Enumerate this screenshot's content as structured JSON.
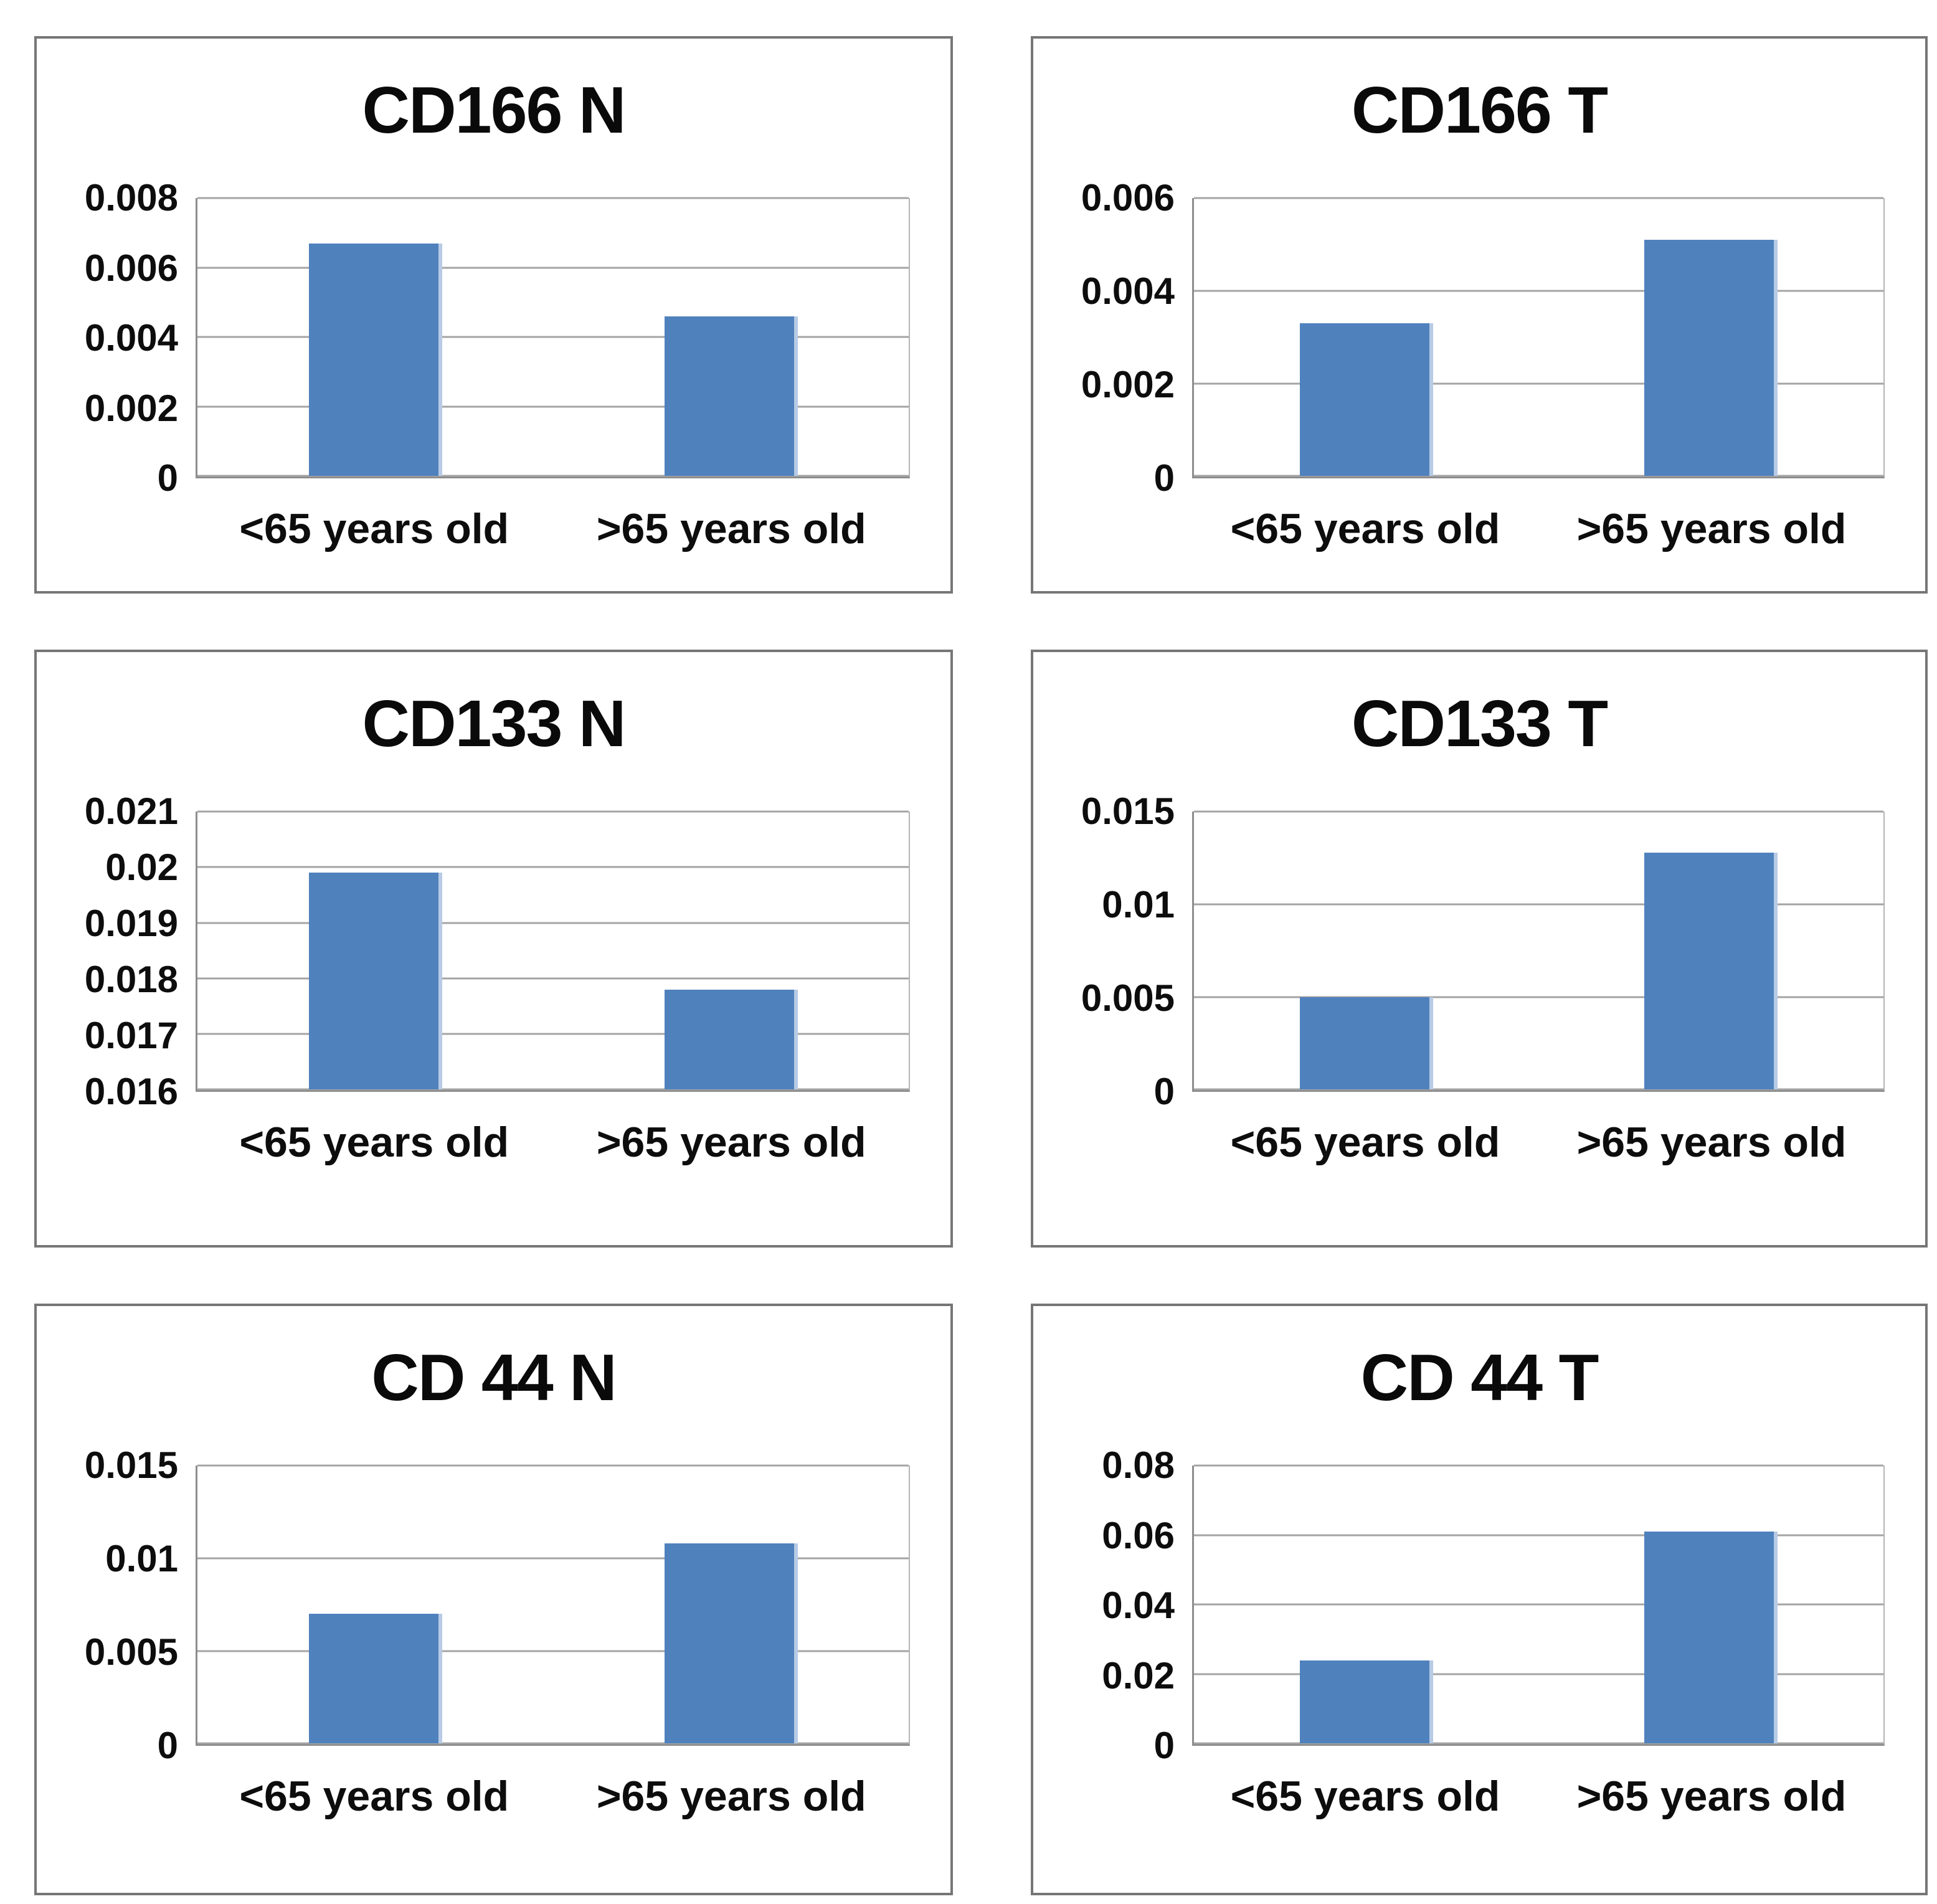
{
  "figure": {
    "description_colors": {
      "bar_fill": "#4F81BD",
      "bar_edge_highlight": "#b7cbe5",
      "gridline": "#a4a4a4",
      "panel_border": "#767676",
      "text": "#0d0d0d",
      "background": "#ffffff"
    }
  },
  "chart_data": [
    {
      "type": "bar",
      "title": "CD166 N",
      "categories": [
        "<65 years old",
        ">65 years old"
      ],
      "values": [
        0.0067,
        0.0046
      ],
      "ylim": [
        0,
        0.008
      ],
      "yticks": [
        0.008,
        0.006,
        0.004,
        0.002,
        0
      ],
      "ytick_labels": [
        "0.008",
        "0.006",
        "0.004",
        "0.002",
        "0"
      ],
      "grid": true,
      "legend": false,
      "xlabel": "",
      "ylabel": ""
    },
    {
      "type": "bar",
      "title": "CD166 T",
      "categories": [
        "<65 years old",
        ">65 years old"
      ],
      "values": [
        0.0033,
        0.0051
      ],
      "ylim": [
        0,
        0.006
      ],
      "yticks": [
        0.006,
        0.004,
        0.002,
        0
      ],
      "ytick_labels": [
        "0.006",
        "0.004",
        "0.002",
        "0"
      ],
      "grid": true,
      "legend": false,
      "xlabel": "",
      "ylabel": ""
    },
    {
      "type": "bar",
      "title": "CD133 N",
      "categories": [
        "<65 years old",
        ">65 years old"
      ],
      "values": [
        0.0199,
        0.0178
      ],
      "ylim": [
        0.016,
        0.021
      ],
      "yticks": [
        0.021,
        0.02,
        0.019,
        0.018,
        0.017,
        0.016
      ],
      "ytick_labels": [
        "0.021",
        "0.02",
        "0.019",
        "0.018",
        "0.017",
        "0.016"
      ],
      "grid": true,
      "legend": false,
      "xlabel": "",
      "ylabel": ""
    },
    {
      "type": "bar",
      "title": "CD133 T",
      "categories": [
        "<65 years old",
        ">65 years old"
      ],
      "values": [
        0.005,
        0.0128
      ],
      "ylim": [
        0,
        0.015
      ],
      "yticks": [
        0.015,
        0.01,
        0.005,
        0
      ],
      "ytick_labels": [
        "0.015",
        "0.01",
        "0.005",
        "0"
      ],
      "grid": true,
      "legend": false,
      "xlabel": "",
      "ylabel": ""
    },
    {
      "type": "bar",
      "title": "CD 44 N",
      "categories": [
        "<65 years old",
        ">65 years old"
      ],
      "values": [
        0.007,
        0.0108
      ],
      "ylim": [
        0,
        0.015
      ],
      "yticks": [
        0.015,
        0.01,
        0.005,
        0
      ],
      "ytick_labels": [
        "0.015",
        "0.01",
        "0.005",
        "0"
      ],
      "grid": true,
      "legend": false,
      "xlabel": "",
      "ylabel": ""
    },
    {
      "type": "bar",
      "title": "CD 44 T",
      "categories": [
        "<65 years old",
        ">65 years old"
      ],
      "values": [
        0.024,
        0.061
      ],
      "ylim": [
        0,
        0.08
      ],
      "yticks": [
        0.08,
        0.06,
        0.04,
        0.02,
        0
      ],
      "ytick_labels": [
        "0.08",
        "0.06",
        "0.04",
        "0.02",
        "0"
      ],
      "grid": true,
      "legend": false,
      "xlabel": "",
      "ylabel": ""
    }
  ],
  "layout": {
    "bar_center_percents": [
      25,
      75
    ]
  }
}
